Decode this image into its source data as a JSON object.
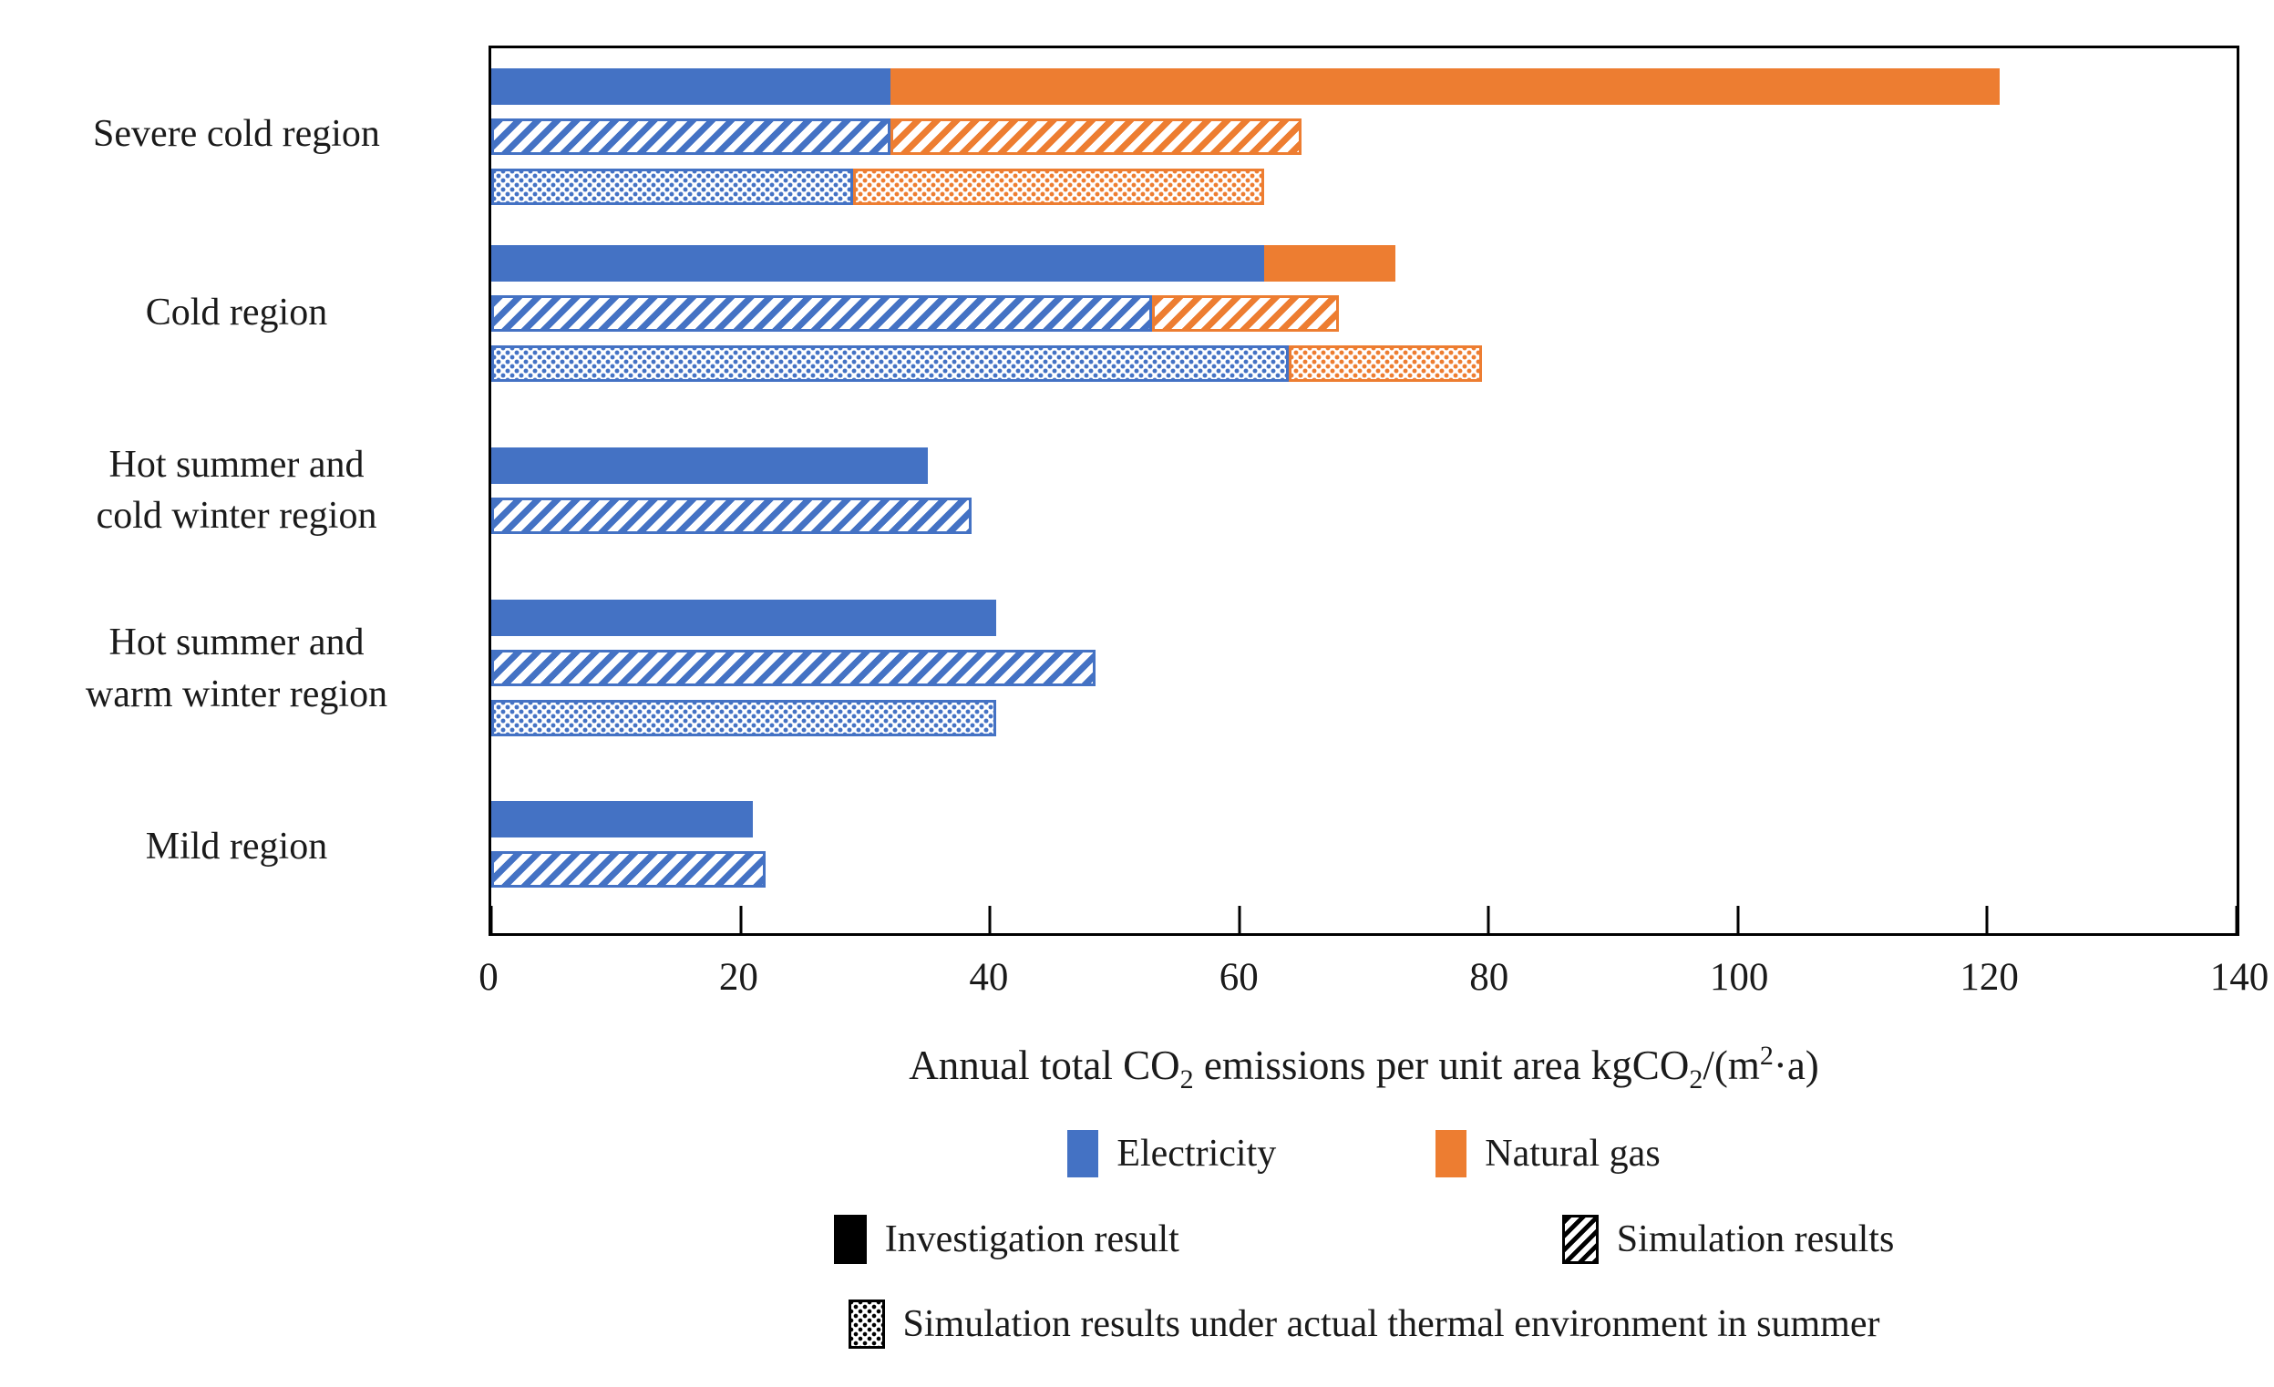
{
  "chart_data": {
    "type": "bar",
    "orientation": "horizontal",
    "stacked": true,
    "title": "",
    "xlabel": "Annual total CO2 emissions per unit area kgCO2/(m2·a)",
    "xlabel_parts": {
      "p1": "Annual total CO",
      "sub1": "2",
      "p2": " emissions per unit area kgCO",
      "sub2": "2",
      "p3": "/(m",
      "sup1": "2",
      "p4": "·a)"
    },
    "x_range": [
      0,
      140
    ],
    "x_ticks": [
      0,
      20,
      40,
      60,
      80,
      100,
      120,
      140
    ],
    "grid": false,
    "series_colors": {
      "electricity": "#4472C4",
      "natural_gas": "#ED7D31"
    },
    "bar_styles": {
      "investigation": "solid fill",
      "simulation": "diagonal hatch",
      "simulation_summer": "dotted pattern"
    },
    "groups": [
      {
        "label": "Severe cold region",
        "label_lines": [
          "Severe cold region"
        ],
        "bars": [
          {
            "style": "investigation",
            "electricity": 32,
            "natural_gas": 89,
            "total": 121
          },
          {
            "style": "simulation",
            "electricity": 32,
            "natural_gas": 33,
            "total": 65
          },
          {
            "style": "simulation_summer",
            "electricity": 29,
            "natural_gas": 33,
            "total": 62
          }
        ]
      },
      {
        "label": "Cold region",
        "label_lines": [
          "Cold region"
        ],
        "bars": [
          {
            "style": "investigation",
            "electricity": 62,
            "natural_gas": 10.5,
            "total": 72.5
          },
          {
            "style": "simulation",
            "electricity": 53,
            "natural_gas": 15,
            "total": 68
          },
          {
            "style": "simulation_summer",
            "electricity": 64,
            "natural_gas": 15.5,
            "total": 79.5
          }
        ]
      },
      {
        "label": "Hot summer and cold winter region",
        "label_lines": [
          "Hot summer and",
          "cold winter region"
        ],
        "bars": [
          {
            "style": "investigation",
            "electricity": 35,
            "natural_gas": 0,
            "total": 35
          },
          {
            "style": "simulation",
            "electricity": 38.5,
            "natural_gas": 0,
            "total": 38.5
          }
        ]
      },
      {
        "label": "Hot summer and warm winter region",
        "label_lines": [
          "Hot summer and",
          "warm winter region"
        ],
        "bars": [
          {
            "style": "investigation",
            "electricity": 40.5,
            "natural_gas": 0,
            "total": 40.5
          },
          {
            "style": "simulation",
            "electricity": 48.5,
            "natural_gas": 0,
            "total": 48.5
          },
          {
            "style": "simulation_summer",
            "electricity": 40.5,
            "natural_gas": 0,
            "total": 40.5
          }
        ]
      },
      {
        "label": "Mild region",
        "label_lines": [
          "Mild region"
        ],
        "bars": [
          {
            "style": "investigation",
            "electricity": 21,
            "natural_gas": 0,
            "total": 21
          },
          {
            "style": "simulation",
            "electricity": 22,
            "natural_gas": 0,
            "total": 22
          }
        ]
      }
    ],
    "legend": {
      "series": [
        {
          "name": "Electricity",
          "color": "#4472C4"
        },
        {
          "name": "Natural gas",
          "color": "#ED7D31"
        }
      ],
      "styles": [
        {
          "name": "Investigation result",
          "pattern": "solid"
        },
        {
          "name": "Simulation results",
          "pattern": "hatch"
        },
        {
          "name": "Simulation results under actual thermal environment in summer",
          "pattern": "dots"
        }
      ],
      "position": "bottom"
    }
  }
}
